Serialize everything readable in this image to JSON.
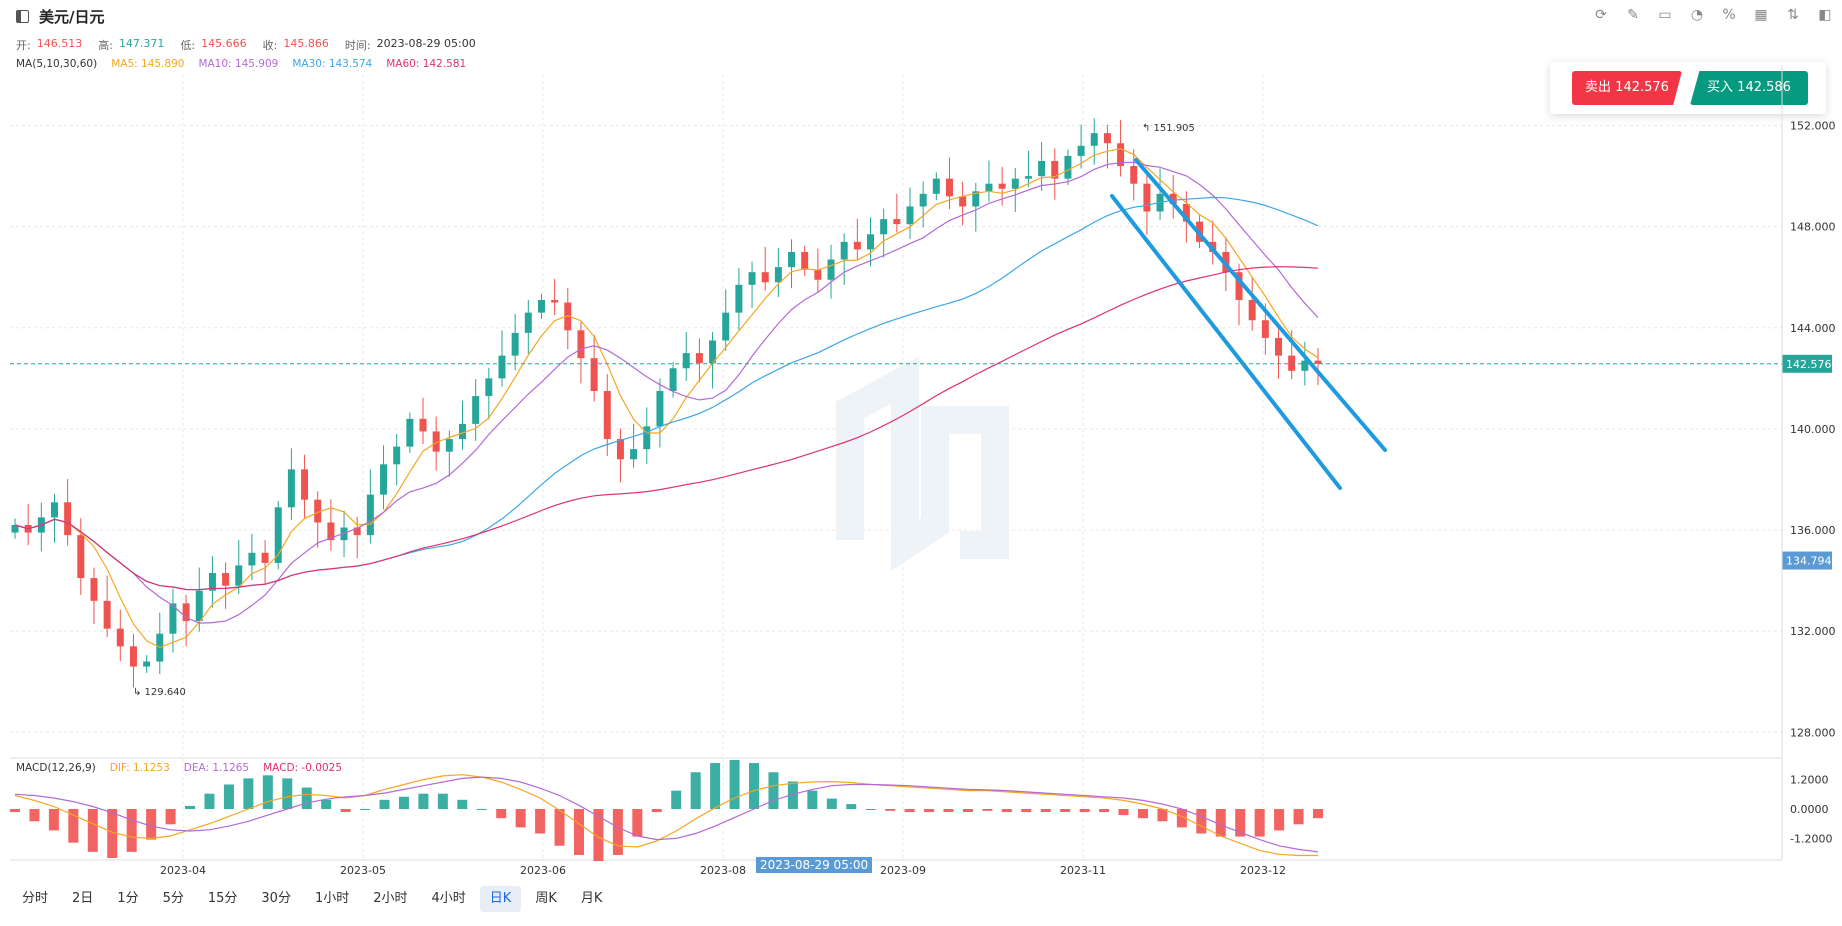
{
  "header": {
    "title": "美元/日元",
    "toolbar_icons": [
      "refresh-icon",
      "draw-icon",
      "compare-icon",
      "pie-icon",
      "percent-icon",
      "layout-icon",
      "indicator-icon",
      "panel-right-icon"
    ]
  },
  "ohlc": {
    "open_label": "开:",
    "open": "146.513",
    "high_label": "高:",
    "high": "147.371",
    "low_label": "低:",
    "low": "145.666",
    "close_label": "收:",
    "close": "145.866",
    "time_label": "时间:",
    "time": "2023-08-29 05:00"
  },
  "ma_legend": {
    "title": "MA(5,10,30,60)",
    "ma5": "MA5: 145.890",
    "ma10": "MA10: 145.909",
    "ma30": "MA30: 143.574",
    "ma60": "MA60: 142.581"
  },
  "trade": {
    "sell": "卖出 142.576",
    "buy": "买入 142.586"
  },
  "macd_legend": {
    "title": "MACD(12,26,9)",
    "dif": "DIF: 1.1253",
    "dea": "DEA: 1.1265",
    "macd": "MACD: -0.0025"
  },
  "crosshair_date": "2023-08-29 05:00",
  "timeframes": [
    "分时",
    "2日",
    "1分",
    "5分",
    "15分",
    "30分",
    "1小时",
    "2小时",
    "4小时",
    "日K",
    "周K",
    "月K"
  ],
  "active_timeframe": "日K",
  "colors": {
    "up": "#26a69a",
    "down": "#ef5350",
    "ma5": "#f5a623",
    "ma10": "#b36ad6",
    "ma30": "#3ea6e6",
    "ma60": "#e0316f",
    "trendline": "#1e9be0"
  },
  "chart_data": [
    {
      "type": "candlestick",
      "x_tick_labels": [
        "2023-04",
        "2023-05",
        "2023-06",
        "2023-08",
        "2023-09",
        "2023-11",
        "2023-12"
      ],
      "y_tick_labels": [
        "152.000",
        "148.000",
        "144.000",
        "140.000",
        "136.000",
        "132.000",
        "128.000"
      ],
      "ylim": [
        127.3,
        154.0
      ],
      "last_price": "142.576",
      "crosshair_price": "134.794",
      "max_annotation": "151.905",
      "min_annotation": "129.640",
      "grid": true,
      "closes": [
        136.2,
        135.9,
        136.5,
        137.1,
        135.8,
        134.1,
        133.2,
        132.1,
        131.4,
        130.6,
        130.8,
        131.9,
        133.1,
        132.4,
        133.6,
        134.3,
        133.8,
        134.6,
        135.1,
        134.7,
        136.9,
        138.4,
        137.2,
        136.3,
        135.6,
        136.1,
        135.8,
        137.4,
        138.6,
        139.3,
        140.4,
        139.9,
        139.1,
        139.6,
        140.2,
        141.3,
        142.0,
        142.9,
        143.8,
        144.6,
        145.1,
        145.0,
        143.9,
        142.8,
        141.5,
        139.6,
        138.8,
        139.2,
        140.1,
        141.5,
        142.4,
        143.0,
        142.6,
        143.5,
        144.6,
        145.7,
        146.2,
        145.8,
        146.4,
        147.0,
        146.3,
        145.9,
        146.7,
        147.4,
        147.1,
        147.7,
        148.3,
        148.1,
        148.8,
        149.3,
        149.9,
        149.2,
        148.8,
        149.4,
        149.7,
        149.5,
        149.9,
        150.0,
        150.6,
        149.9,
        150.8,
        151.2,
        151.7,
        151.3,
        150.4,
        149.7,
        148.6,
        149.3,
        148.9,
        148.2,
        147.4,
        147.0,
        146.2,
        145.1,
        144.3,
        143.6,
        142.9,
        142.3,
        142.7,
        142.576
      ],
      "ma_series": [
        {
          "name": "MA5"
        },
        {
          "name": "MA10"
        },
        {
          "name": "MA30"
        },
        {
          "name": "MA60"
        }
      ]
    },
    {
      "type": "bar",
      "title": "MACD(12,26,9)",
      "y_tick_labels": [
        "1.2000",
        "0.0000",
        "-1.2000"
      ],
      "ylim": [
        -2.0,
        2.0
      ],
      "dif": [
        0.55,
        0.35,
        0.1,
        -0.25,
        -0.6,
        -0.95,
        -1.15,
        -1.2,
        -1.1,
        -0.85,
        -0.6,
        -0.3,
        0.0,
        0.3,
        0.5,
        0.6,
        0.55,
        0.45,
        0.55,
        0.8,
        1.0,
        1.2,
        1.35,
        1.4,
        1.3,
        1.1,
        0.8,
        0.45,
        -0.05,
        -0.6,
        -1.15,
        -1.5,
        -1.55,
        -1.3,
        -0.9,
        -0.4,
        0.05,
        0.45,
        0.75,
        0.95,
        1.05,
        1.1,
        1.12,
        1.08,
        1.0,
        0.95,
        0.9,
        0.85,
        0.8,
        0.75,
        0.75,
        0.7,
        0.65,
        0.6,
        0.55,
        0.5,
        0.45,
        0.35,
        0.2,
        0.0,
        -0.3,
        -0.7,
        -1.1,
        -1.4,
        -1.7,
        -1.85,
        -1.9,
        -1.9
      ],
      "dea": [
        0.6,
        0.55,
        0.45,
        0.3,
        0.1,
        -0.15,
        -0.45,
        -0.7,
        -0.85,
        -0.9,
        -0.85,
        -0.7,
        -0.5,
        -0.25,
        0.0,
        0.25,
        0.4,
        0.5,
        0.55,
        0.65,
        0.8,
        0.95,
        1.1,
        1.25,
        1.3,
        1.25,
        1.1,
        0.85,
        0.55,
        0.15,
        -0.3,
        -0.75,
        -1.1,
        -1.25,
        -1.2,
        -1.0,
        -0.7,
        -0.35,
        0.0,
        0.35,
        0.6,
        0.8,
        0.95,
        1.0,
        1.0,
        0.98,
        0.95,
        0.9,
        0.85,
        0.8,
        0.78,
        0.75,
        0.7,
        0.65,
        0.6,
        0.55,
        0.5,
        0.45,
        0.35,
        0.2,
        0.0,
        -0.3,
        -0.65,
        -0.95,
        -1.25,
        -1.5,
        -1.65,
        -1.75
      ]
    }
  ]
}
